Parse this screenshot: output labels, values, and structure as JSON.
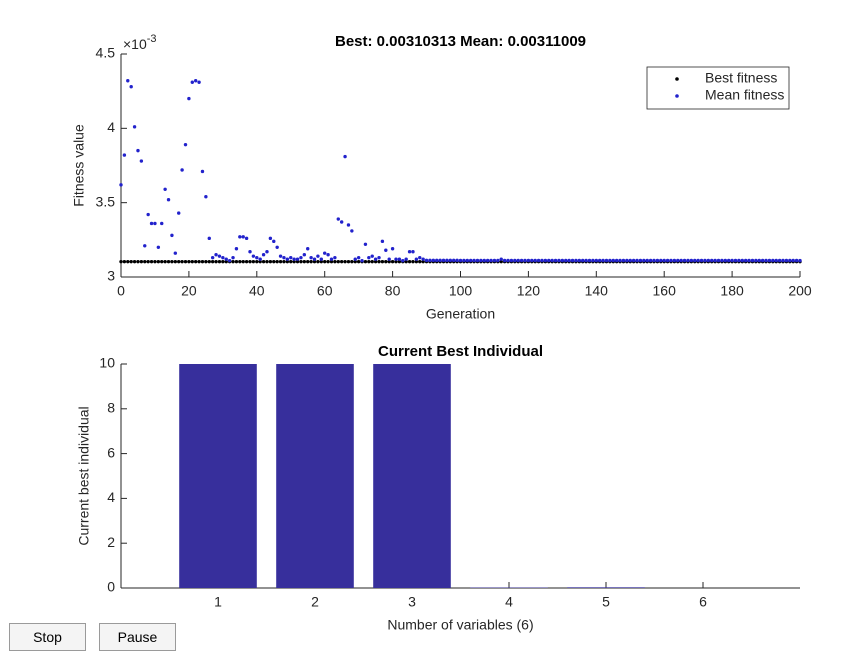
{
  "chart_data": [
    {
      "type": "scatter",
      "title": "Best: 0.00310313 Mean: 0.00311009",
      "xlabel": "Generation",
      "ylabel": "Fitness value",
      "yscale_label": {
        "base": "×10",
        "exponent": "-3"
      },
      "xlim": [
        0,
        200
      ],
      "xticks": [
        0,
        20,
        40,
        60,
        80,
        100,
        120,
        140,
        160,
        180,
        200
      ],
      "ylim": [
        3,
        4.5
      ],
      "yticks": [
        3,
        3.5,
        4,
        4.5
      ],
      "legend": "northeast",
      "x": [
        0,
        1,
        2,
        3,
        4,
        5,
        6,
        7,
        8,
        9,
        10,
        11,
        12,
        13,
        14,
        15,
        16,
        17,
        18,
        19,
        20,
        21,
        22,
        23,
        24,
        25,
        26,
        27,
        28,
        29,
        30,
        31,
        32,
        33,
        34,
        35,
        36,
        37,
        38,
        39,
        40,
        41,
        42,
        43,
        44,
        45,
        46,
        47,
        48,
        49,
        50,
        51,
        52,
        53,
        54,
        55,
        56,
        57,
        58,
        59,
        60,
        61,
        62,
        63,
        64,
        65,
        66,
        67,
        68,
        69,
        70,
        71,
        72,
        73,
        74,
        75,
        76,
        77,
        78,
        79,
        80,
        81,
        82,
        83,
        84,
        85,
        86,
        87,
        88,
        89,
        90,
        91,
        92,
        93,
        94,
        95,
        96,
        97,
        98,
        99,
        100,
        101,
        102,
        103,
        104,
        105,
        106,
        107,
        108,
        109,
        110,
        111,
        112,
        113,
        114,
        115,
        116,
        117,
        118,
        119,
        120,
        121,
        122,
        123,
        124,
        125,
        126,
        127,
        128,
        129,
        130,
        131,
        132,
        133,
        134,
        135,
        136,
        137,
        138,
        139,
        140,
        141,
        142,
        143,
        144,
        145,
        146,
        147,
        148,
        149,
        150,
        151,
        152,
        153,
        154,
        155,
        156,
        157,
        158,
        159,
        160,
        161,
        162,
        163,
        164,
        165,
        166,
        167,
        168,
        169,
        170,
        171,
        172,
        173,
        174,
        175,
        176,
        177,
        178,
        179,
        180,
        181,
        182,
        183,
        184,
        185,
        186,
        187,
        188,
        189,
        190,
        191,
        192,
        193,
        194,
        195,
        196,
        197,
        198,
        199,
        200
      ],
      "series": [
        {
          "name": "Best fitness",
          "color": "#000000",
          "values": [
            3.10313,
            3.10313,
            3.10313,
            3.10313,
            3.10313,
            3.10313,
            3.10313,
            3.10313,
            3.10313,
            3.10313,
            3.10313,
            3.10313,
            3.10313,
            3.10313,
            3.10313,
            3.10313,
            3.10313,
            3.10313,
            3.10313,
            3.10313,
            3.10313,
            3.10313,
            3.10313,
            3.10313,
            3.10313,
            3.10313,
            3.10313,
            3.10313,
            3.10313,
            3.10313,
            3.10313,
            3.10313,
            3.10313,
            3.10313,
            3.10313,
            3.10313,
            3.10313,
            3.10313,
            3.10313,
            3.10313,
            3.10313,
            3.10313,
            3.10313,
            3.10313,
            3.10313,
            3.10313,
            3.10313,
            3.10313,
            3.10313,
            3.10313,
            3.10313,
            3.10313,
            3.10313,
            3.10313,
            3.10313,
            3.10313,
            3.10313,
            3.10313,
            3.10313,
            3.10313,
            3.10313,
            3.10313,
            3.10313,
            3.10313,
            3.10313,
            3.10313,
            3.10313,
            3.10313,
            3.10313,
            3.10313,
            3.10313,
            3.10313,
            3.10313,
            3.10313,
            3.10313,
            3.10313,
            3.10313,
            3.10313,
            3.10313,
            3.10313,
            3.10313,
            3.10313,
            3.10313,
            3.10313,
            3.10313,
            3.10313,
            3.10313,
            3.10313,
            3.10313,
            3.10313,
            3.10313,
            3.10313,
            3.10313,
            3.10313,
            3.10313,
            3.10313,
            3.10313,
            3.10313,
            3.10313,
            3.10313,
            3.10313,
            3.10313,
            3.10313,
            3.10313,
            3.10313,
            3.10313,
            3.10313,
            3.10313,
            3.10313,
            3.10313,
            3.10313,
            3.10313,
            3.10313,
            3.10313,
            3.10313,
            3.10313,
            3.10313,
            3.10313,
            3.10313,
            3.10313,
            3.10313,
            3.10313,
            3.10313,
            3.10313,
            3.10313,
            3.10313,
            3.10313,
            3.10313,
            3.10313,
            3.10313,
            3.10313,
            3.10313,
            3.10313,
            3.10313,
            3.10313,
            3.10313,
            3.10313,
            3.10313,
            3.10313,
            3.10313,
            3.10313,
            3.10313,
            3.10313,
            3.10313,
            3.10313,
            3.10313,
            3.10313,
            3.10313,
            3.10313,
            3.10313,
            3.10313,
            3.10313,
            3.10313,
            3.10313,
            3.10313,
            3.10313,
            3.10313,
            3.10313,
            3.10313,
            3.10313,
            3.10313,
            3.10313,
            3.10313,
            3.10313,
            3.10313,
            3.10313,
            3.10313,
            3.10313,
            3.10313,
            3.10313,
            3.10313,
            3.10313,
            3.10313,
            3.10313,
            3.10313,
            3.10313,
            3.10313,
            3.10313,
            3.10313,
            3.10313,
            3.10313,
            3.10313,
            3.10313,
            3.10313,
            3.10313,
            3.10313,
            3.10313,
            3.10313,
            3.10313,
            3.10313,
            3.10313,
            3.10313,
            3.10313,
            3.10313,
            3.10313,
            3.10313,
            3.10313,
            3.10313,
            3.10313,
            3.10313,
            3.10313
          ]
        },
        {
          "name": "Mean fitness",
          "color": "#2222cc",
          "values": [
            3.62,
            3.82,
            4.32,
            4.28,
            4.01,
            3.85,
            3.78,
            3.21,
            3.42,
            3.36,
            3.36,
            3.2,
            3.36,
            3.59,
            3.52,
            3.28,
            3.16,
            3.43,
            3.72,
            3.89,
            4.2,
            4.31,
            4.32,
            4.31,
            3.71,
            3.54,
            3.26,
            3.13,
            3.15,
            3.14,
            3.13,
            3.12,
            3.11,
            3.13,
            3.19,
            3.27,
            3.27,
            3.26,
            3.17,
            3.14,
            3.13,
            3.12,
            3.15,
            3.17,
            3.26,
            3.24,
            3.2,
            3.14,
            3.13,
            3.12,
            3.13,
            3.12,
            3.12,
            3.13,
            3.15,
            3.19,
            3.13,
            3.12,
            3.14,
            3.12,
            3.16,
            3.15,
            3.12,
            3.13,
            3.39,
            3.37,
            3.81,
            3.35,
            3.31,
            3.12,
            3.13,
            3.11,
            3.22,
            3.13,
            3.14,
            3.12,
            3.13,
            3.24,
            3.18,
            3.12,
            3.19,
            3.12,
            3.12,
            3.11,
            3.12,
            3.17,
            3.17,
            3.12,
            3.13,
            3.12,
            3.112,
            3.112,
            3.112,
            3.112,
            3.112,
            3.112,
            3.112,
            3.112,
            3.112,
            3.112,
            3.111,
            3.111,
            3.111,
            3.111,
            3.111,
            3.111,
            3.111,
            3.111,
            3.111,
            3.111,
            3.111,
            3.111,
            3.12,
            3.111,
            3.111,
            3.111,
            3.111,
            3.111,
            3.111,
            3.111,
            3.111,
            3.111,
            3.111,
            3.111,
            3.111,
            3.111,
            3.111,
            3.111,
            3.111,
            3.111,
            3.111,
            3.111,
            3.111,
            3.111,
            3.111,
            3.111,
            3.111,
            3.111,
            3.111,
            3.111,
            3.111,
            3.111,
            3.111,
            3.111,
            3.111,
            3.111,
            3.111,
            3.111,
            3.111,
            3.111,
            3.111,
            3.111,
            3.111,
            3.111,
            3.111,
            3.111,
            3.111,
            3.111,
            3.111,
            3.111,
            3.111,
            3.111,
            3.111,
            3.111,
            3.111,
            3.111,
            3.111,
            3.111,
            3.111,
            3.111,
            3.111,
            3.111,
            3.111,
            3.111,
            3.111,
            3.111,
            3.111,
            3.111,
            3.111,
            3.111,
            3.111,
            3.111,
            3.111,
            3.111,
            3.111,
            3.111,
            3.111,
            3.111,
            3.111,
            3.111,
            3.111,
            3.111,
            3.111,
            3.111,
            3.111,
            3.111,
            3.111,
            3.111,
            3.111,
            3.111,
            3.11009
          ]
        }
      ]
    },
    {
      "type": "bar",
      "title": "Current Best Individual",
      "xlabel": "Number of variables (6)",
      "ylabel": "Current best individual",
      "x": [
        1,
        2,
        3,
        4,
        5,
        6
      ],
      "xlim": [
        0,
        7
      ],
      "xticks": [
        1,
        2,
        3,
        4,
        5,
        6
      ],
      "ylim": [
        0,
        10
      ],
      "yticks": [
        0,
        2,
        4,
        6,
        8,
        10
      ],
      "color": "#372f9c",
      "values": [
        10,
        10,
        10,
        0.02,
        0.03,
        0
      ]
    }
  ],
  "buttons": [
    "Stop",
    "Pause"
  ]
}
